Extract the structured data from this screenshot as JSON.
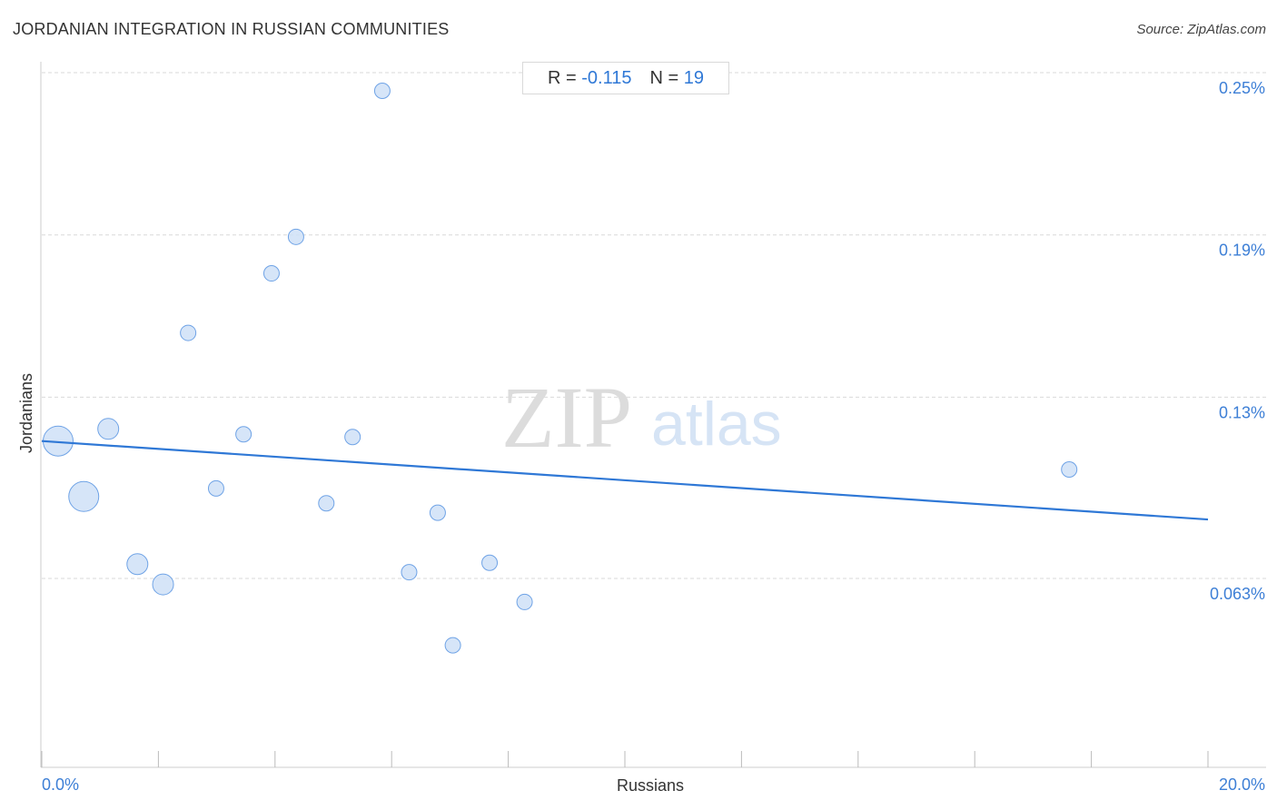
{
  "title": "JORDANIAN INTEGRATION IN RUSSIAN COMMUNITIES",
  "source": "Source: ZipAtlas.com",
  "stats": {
    "r_label": "R =",
    "r_value": "-0.115",
    "n_label": "N =",
    "n_value": "19"
  },
  "watermark": {
    "zip": "ZIP",
    "atlas": "atlas"
  },
  "colors": {
    "accent": "#2f78d6",
    "point_fill": "#cfe1f7",
    "point_stroke": "#6fa3e6",
    "grid": "#d9d9d9"
  },
  "chart_data": {
    "type": "scatter",
    "title": "JORDANIAN INTEGRATION IN RUSSIAN COMMUNITIES",
    "xlabel": "Russians",
    "ylabel": "Jordanians",
    "xlim": [
      0,
      20
    ],
    "ylim": [
      0.0,
      0.255
    ],
    "x_tick_labels": [
      {
        "value": 0,
        "label": "0.0%"
      },
      {
        "value": 20,
        "label": "20.0%"
      }
    ],
    "y_tick_labels": [
      {
        "value": 0.25,
        "label": "0.25%"
      },
      {
        "value": 0.19,
        "label": "0.19%"
      },
      {
        "value": 0.13,
        "label": "0.13%"
      },
      {
        "value": 0.063,
        "label": "0.063%"
      }
    ],
    "grid": true,
    "points": [
      {
        "x": 0.28,
        "y": 0.1195,
        "size": 3
      },
      {
        "x": 0.72,
        "y": 0.099,
        "size": 3
      },
      {
        "x": 1.14,
        "y": 0.124,
        "size": 2
      },
      {
        "x": 1.64,
        "y": 0.074,
        "size": 2
      },
      {
        "x": 2.08,
        "y": 0.0665,
        "size": 2
      },
      {
        "x": 2.51,
        "y": 0.1595,
        "size": 1
      },
      {
        "x": 2.99,
        "y": 0.102,
        "size": 1
      },
      {
        "x": 3.46,
        "y": 0.122,
        "size": 1
      },
      {
        "x": 3.94,
        "y": 0.1815,
        "size": 1
      },
      {
        "x": 4.36,
        "y": 0.195,
        "size": 1
      },
      {
        "x": 4.88,
        "y": 0.0965,
        "size": 1
      },
      {
        "x": 5.33,
        "y": 0.121,
        "size": 1
      },
      {
        "x": 5.84,
        "y": 0.249,
        "size": 1
      },
      {
        "x": 6.3,
        "y": 0.071,
        "size": 1
      },
      {
        "x": 6.79,
        "y": 0.093,
        "size": 1
      },
      {
        "x": 7.05,
        "y": 0.044,
        "size": 1
      },
      {
        "x": 7.68,
        "y": 0.0745,
        "size": 1
      },
      {
        "x": 8.28,
        "y": 0.06,
        "size": 1
      },
      {
        "x": 17.62,
        "y": 0.109,
        "size": 1
      }
    ],
    "trendline": {
      "x": [
        0,
        20
      ],
      "y": [
        0.1195,
        0.0905
      ]
    }
  }
}
